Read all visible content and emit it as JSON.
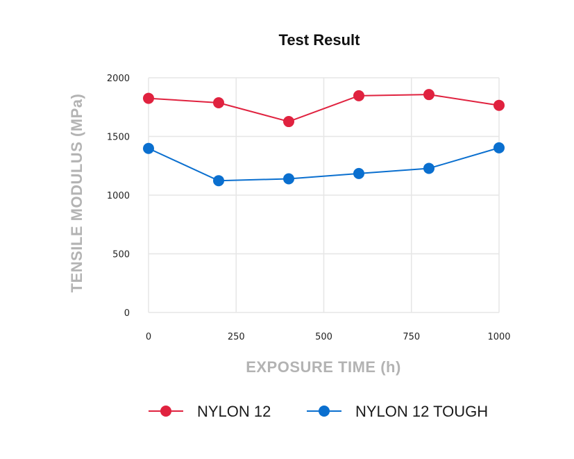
{
  "chart_data": {
    "type": "line",
    "title": "Test Result",
    "xlabel": "EXPOSURE TIME (h)",
    "ylabel": "TENSILE MODULUS (MPa)",
    "x": [
      0,
      200,
      400,
      600,
      800,
      1000
    ],
    "xlim": [
      0,
      1000
    ],
    "ylim": [
      0,
      2000
    ],
    "xticks": [
      "0",
      "250",
      "500",
      "750",
      "1000"
    ],
    "xtick_values": [
      0,
      250,
      500,
      750,
      1000
    ],
    "yticks": [
      "0",
      "500",
      "1000",
      "1500",
      "2000"
    ],
    "ytick_values": [
      0,
      500,
      1000,
      1500,
      2000
    ],
    "grid": true,
    "legend_position": "bottom",
    "series": [
      {
        "name": "NYLON 12",
        "color": "#e0223f",
        "values": [
          1825,
          1787,
          1627,
          1847,
          1857,
          1765
        ]
      },
      {
        "name": "NYLON 12 TOUGH",
        "color": "#0a6fcf",
        "values": [
          1398,
          1123,
          1139,
          1184,
          1228,
          1403
        ]
      }
    ]
  }
}
